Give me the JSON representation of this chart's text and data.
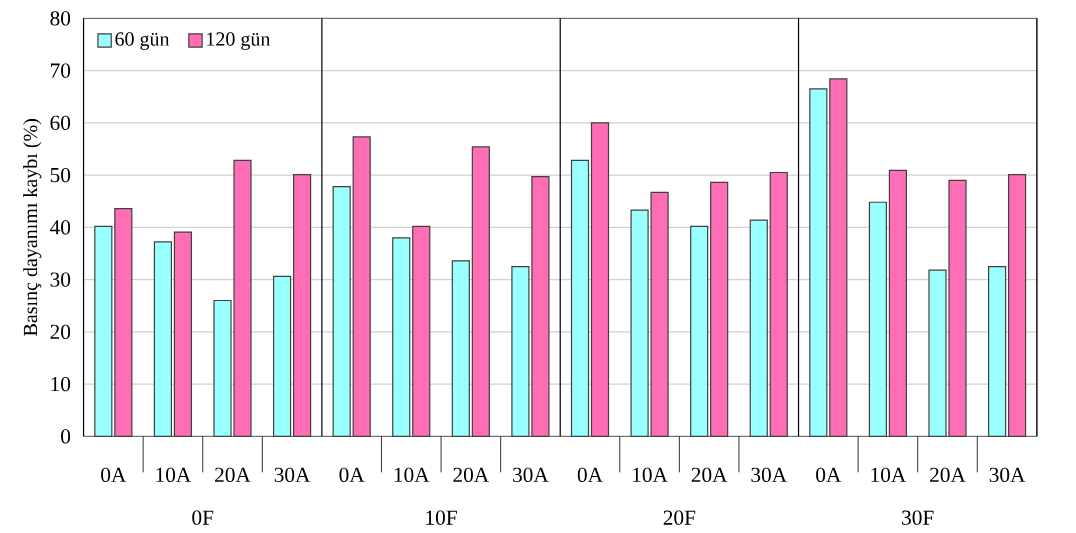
{
  "chart_data": {
    "type": "bar",
    "ylabel": "Basınç dayanımı kaybı (%)",
    "categories": [
      "0A",
      "10A",
      "20A",
      "30A",
      "0A",
      "10A",
      "20A",
      "30A",
      "0A",
      "10A",
      "20A",
      "30A",
      "0A",
      "10A",
      "20A",
      "30A"
    ],
    "series": [
      {
        "name": "60 gün",
        "color": "#99ffff",
        "values": [
          40.2,
          37.2,
          26.0,
          30.6,
          47.8,
          38.0,
          33.6,
          32.5,
          52.8,
          43.3,
          40.2,
          41.4,
          66.5,
          44.8,
          31.8,
          32.5
        ]
      },
      {
        "name": "120 gün",
        "color": "#ff6eb4",
        "values": [
          43.6,
          39.1,
          52.8,
          50.1,
          57.3,
          40.2,
          55.4,
          49.7,
          60.0,
          46.7,
          48.6,
          50.5,
          68.4,
          50.9,
          49.0,
          50.1
        ]
      }
    ],
    "annotations": [
      "0F",
      "10F",
      "20F",
      "30F"
    ],
    "ylim": [
      0,
      80
    ],
    "yticks": [
      0,
      10,
      20,
      30,
      40,
      50,
      60,
      70,
      80
    ],
    "grid": "y",
    "legend": "top left"
  }
}
